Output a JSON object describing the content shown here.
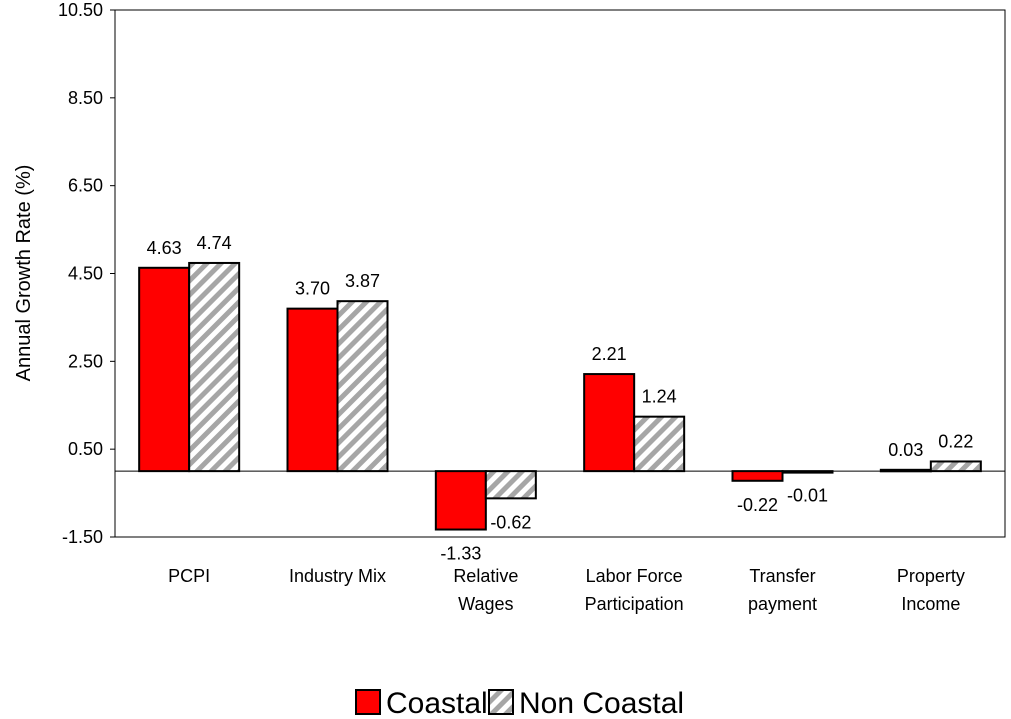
{
  "chart_data": {
    "type": "bar",
    "title": "",
    "xlabel": "",
    "ylabel": "Annual Growth Rate (%)",
    "categories": [
      [
        "PCPI"
      ],
      [
        "Industry Mix"
      ],
      [
        "Relative",
        "Wages"
      ],
      [
        "Labor Force",
        "Participation"
      ],
      [
        "Transfer",
        "payment"
      ],
      [
        "Property",
        "Income"
      ]
    ],
    "series": [
      {
        "name": "Coastal",
        "values": [
          4.63,
          3.7,
          -1.33,
          2.21,
          -0.22,
          0.03
        ],
        "labels": [
          "4.63",
          "3.70",
          "-1.33",
          "2.21",
          "-0.22",
          "0.03"
        ],
        "color": "#ff0000",
        "pattern": "solid"
      },
      {
        "name": "Non Coastal",
        "values": [
          4.74,
          3.87,
          -0.62,
          1.24,
          -0.01,
          0.22
        ],
        "labels": [
          "4.74",
          "3.87",
          "-0.62",
          "1.24",
          "-0.01",
          "0.22"
        ],
        "color": "#a6a6a6",
        "pattern": "diagonal-stripes"
      }
    ],
    "yticks": [
      "10.50",
      "8.50",
      "6.50",
      "4.50",
      "2.50",
      "0.50",
      "-1.50"
    ],
    "ylim": [
      -1.5,
      10.5
    ],
    "grid": false,
    "legend": "bottom"
  }
}
